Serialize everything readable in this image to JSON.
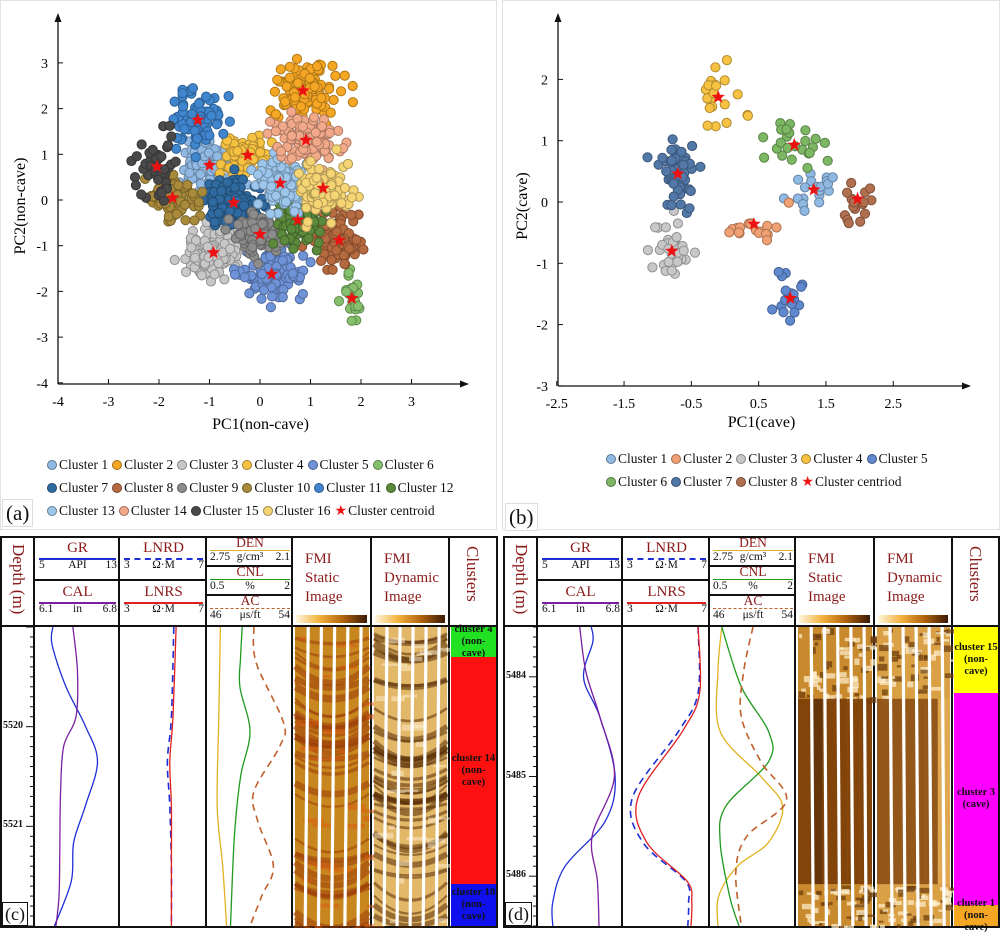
{
  "chart_data": [
    {
      "id": "a",
      "type": "scatter",
      "panel_label": "(a)",
      "xlabel": "PC1(non-cave)",
      "ylabel": "PC2(non-cave)",
      "xlim": [
        -4,
        3.8
      ],
      "ylim": [
        -4,
        3.9
      ],
      "xticks": [
        -4,
        -3,
        -2,
        -1,
        0,
        1,
        2,
        3
      ],
      "yticks": [
        -4,
        -3,
        -2,
        -1,
        0,
        1,
        2,
        3
      ],
      "grid": false,
      "legend_position": "bottom",
      "centroid_label": "Cluster centroid",
      "series": [
        {
          "name": "Cluster 1",
          "color": "#8fb8e2",
          "centroid": [
            -1.0,
            0.76
          ],
          "spread": [
            0.3,
            0.35
          ],
          "n": 110
        },
        {
          "name": "Cluster 2",
          "color": "#f5a623",
          "centroid": [
            0.85,
            2.39
          ],
          "spread": [
            0.4,
            0.42
          ],
          "n": 120
        },
        {
          "name": "Cluster 3",
          "color": "#c8c8c8",
          "centroid": [
            -0.92,
            -1.15
          ],
          "spread": [
            0.32,
            0.35
          ],
          "n": 140
        },
        {
          "name": "Cluster 4",
          "color": "#f7c242",
          "centroid": [
            -0.24,
            0.98
          ],
          "spread": [
            0.35,
            0.25
          ],
          "n": 90
        },
        {
          "name": "Cluster 5",
          "color": "#6f93d8",
          "centroid": [
            0.23,
            -1.62
          ],
          "spread": [
            0.38,
            0.35
          ],
          "n": 120
        },
        {
          "name": "Cluster 6",
          "color": "#86c06c",
          "centroid": [
            1.82,
            -2.15
          ],
          "spread": [
            0.14,
            0.38
          ],
          "n": 22
        },
        {
          "name": "Cluster 7",
          "color": "#2f6aa0",
          "centroid": [
            -0.52,
            -0.06
          ],
          "spread": [
            0.32,
            0.3
          ],
          "n": 170
        },
        {
          "name": "Cluster 8",
          "color": "#b66a3f",
          "centroid": [
            1.57,
            -0.88
          ],
          "spread": [
            0.32,
            0.38
          ],
          "n": 90
        },
        {
          "name": "Cluster 9",
          "color": "#8c8c8c",
          "centroid": [
            0.0,
            -0.75
          ],
          "spread": [
            0.3,
            0.25
          ],
          "n": 140
        },
        {
          "name": "Cluster 10",
          "color": "#a88a3a",
          "centroid": [
            -1.73,
            0.05
          ],
          "spread": [
            0.3,
            0.3
          ],
          "n": 100
        },
        {
          "name": "Cluster 11",
          "color": "#3f86cf",
          "centroid": [
            -1.23,
            1.75
          ],
          "spread": [
            0.35,
            0.4
          ],
          "n": 85
        },
        {
          "name": "Cluster 12",
          "color": "#5b8a3c",
          "centroid": [
            0.75,
            -0.44
          ],
          "spread": [
            0.26,
            0.3
          ],
          "n": 120
        },
        {
          "name": "Cluster 13",
          "color": "#9cc6ec",
          "centroid": [
            0.4,
            0.37
          ],
          "spread": [
            0.3,
            0.3
          ],
          "n": 150
        },
        {
          "name": "Cluster 14",
          "color": "#f2a98a",
          "centroid": [
            0.91,
            1.31
          ],
          "spread": [
            0.4,
            0.3
          ],
          "n": 130
        },
        {
          "name": "Cluster 15",
          "color": "#4a4a4a",
          "centroid": [
            -2.04,
            0.73
          ],
          "spread": [
            0.3,
            0.45
          ],
          "n": 55
        },
        {
          "name": "Cluster 16",
          "color": "#f5d474",
          "centroid": [
            1.25,
            0.26
          ],
          "spread": [
            0.35,
            0.35
          ],
          "n": 110
        }
      ]
    },
    {
      "id": "b",
      "type": "scatter",
      "panel_label": "(b)",
      "xlabel": "PC1(cave)",
      "ylabel": "PC2(cave)",
      "xlim": [
        -2.5,
        3.5
      ],
      "ylim": [
        -3,
        2.9
      ],
      "xticks": [
        -2.5,
        -1.5,
        -0.5,
        0.5,
        1.5,
        2.5
      ],
      "yticks": [
        -3,
        -2,
        -1,
        0,
        1,
        2
      ],
      "grid": false,
      "legend_position": "bottom",
      "centroid_label": "Cluster centriod",
      "series": [
        {
          "name": "Cluster 1",
          "color": "#8fb8e2",
          "centroid": [
            1.32,
            0.2
          ],
          "spread": [
            0.22,
            0.25
          ],
          "n": 20
        },
        {
          "name": "Cluster 2",
          "color": "#f0a072",
          "centroid": [
            0.43,
            -0.36
          ],
          "spread": [
            0.28,
            0.22
          ],
          "n": 18
        },
        {
          "name": "Cluster 3",
          "color": "#c8c8c8",
          "centroid": [
            -0.79,
            -0.8
          ],
          "spread": [
            0.18,
            0.3
          ],
          "n": 34
        },
        {
          "name": "Cluster 4",
          "color": "#f7c242",
          "centroid": [
            -0.1,
            1.71
          ],
          "spread": [
            0.25,
            0.38
          ],
          "n": 20
        },
        {
          "name": "Cluster 5",
          "color": "#5f88cf",
          "centroid": [
            0.97,
            -1.57
          ],
          "spread": [
            0.15,
            0.35
          ],
          "n": 17
        },
        {
          "name": "Cluster 6",
          "color": "#7cb763",
          "centroid": [
            1.03,
            0.93
          ],
          "spread": [
            0.25,
            0.3
          ],
          "n": 24
        },
        {
          "name": "Cluster 7",
          "color": "#5278a8",
          "centroid": [
            -0.7,
            0.46
          ],
          "spread": [
            0.2,
            0.38
          ],
          "n": 52
        },
        {
          "name": "Cluster 8",
          "color": "#b0704f",
          "centroid": [
            1.97,
            0.05
          ],
          "spread": [
            0.15,
            0.2
          ],
          "n": 18
        }
      ]
    }
  ],
  "logs": [
    {
      "id": "c",
      "panel_label": "(c)",
      "depth_title": "Depth (m)",
      "depth_range": [
        5519.0,
        5522.0
      ],
      "depth_labels": [
        "5520",
        "5521"
      ],
      "depth_label_values": [
        5520,
        5521
      ],
      "tracks": {
        "gr": {
          "name": "GR",
          "min": "5",
          "unit": "API",
          "max": "13",
          "color": "#1f2fd6"
        },
        "cal": {
          "name": "CAL",
          "min": "6.1",
          "unit": "in",
          "max": "6.8",
          "color": "#7a1fa0"
        },
        "lnrd": {
          "name": "LNRD",
          "min": "3",
          "unit": "Ω·M",
          "max": "7",
          "color": "#1f2fd6"
        },
        "lnrs": {
          "name": "LNRS",
          "min": "3",
          "unit": "Ω·M",
          "max": "7",
          "color": "#e01f1f"
        },
        "den": {
          "name": "DEN",
          "min": "2.75",
          "unit": "g/cm³",
          "max": "2.1",
          "color": "#e0b21f"
        },
        "cnl": {
          "name": "CNL",
          "min": "0.5",
          "unit": "%",
          "max": "2",
          "color": "#1f9a1f"
        },
        "ac": {
          "name": "AC",
          "min": "46",
          "unit": "μs/ft",
          "max": "54",
          "color": "#c0602a"
        }
      },
      "fmi_static_title": "FMI Static Image",
      "fmi_dynamic_title": "FMI Dynamic Image",
      "clusters_title": "Clusters",
      "curves_frac": {
        "gr": [
          [
            0,
            0.18
          ],
          [
            0.06,
            0.17
          ],
          [
            0.2,
            0.35
          ],
          [
            0.33,
            0.6
          ],
          [
            0.45,
            0.76
          ],
          [
            0.6,
            0.6
          ],
          [
            0.72,
            0.45
          ],
          [
            0.85,
            0.42
          ],
          [
            1,
            0.2
          ]
        ],
        "cal": [
          [
            0,
            0.44
          ],
          [
            0.15,
            0.5
          ],
          [
            0.3,
            0.48
          ],
          [
            0.4,
            0.32
          ],
          [
            0.55,
            0.28
          ],
          [
            0.75,
            0.27
          ],
          [
            0.9,
            0.26
          ],
          [
            1,
            0.22
          ]
        ],
        "lnrd": [
          [
            0,
            0.63
          ],
          [
            0.3,
            0.6
          ],
          [
            0.45,
            0.55
          ],
          [
            0.6,
            0.58
          ],
          [
            0.8,
            0.6
          ],
          [
            1,
            0.6
          ]
        ],
        "lnrs": [
          [
            0,
            0.66
          ],
          [
            0.3,
            0.62
          ],
          [
            0.45,
            0.58
          ],
          [
            0.6,
            0.6
          ],
          [
            0.8,
            0.6
          ],
          [
            1,
            0.6
          ]
        ],
        "den": [
          [
            0,
            0.12
          ],
          [
            0.3,
            0.1
          ],
          [
            0.6,
            0.08
          ],
          [
            0.8,
            0.15
          ],
          [
            1,
            0.2
          ]
        ],
        "cnl": [
          [
            0,
            0.4
          ],
          [
            0.1,
            0.38
          ],
          [
            0.2,
            0.37
          ],
          [
            0.35,
            0.5
          ],
          [
            0.5,
            0.38
          ],
          [
            0.7,
            0.3
          ],
          [
            1,
            0.25
          ]
        ],
        "ac": [
          [
            0,
            0.55
          ],
          [
            0.12,
            0.58
          ],
          [
            0.32,
            0.93
          ],
          [
            0.4,
            0.88
          ],
          [
            0.55,
            0.55
          ],
          [
            0.65,
            0.6
          ],
          [
            0.8,
            0.8
          ],
          [
            0.9,
            0.65
          ],
          [
            1,
            0.5
          ]
        ]
      },
      "fmi_style": "layered",
      "zones": [
        {
          "label": "cluster 4",
          "sub": "(non-cave)",
          "color": "#22e022",
          "from": 0.0,
          "to": 0.1
        },
        {
          "label": "cluster 14",
          "sub": "(non-cave)",
          "color": "#ff1010",
          "from": 0.1,
          "to": 0.86
        },
        {
          "label": "cluster 10",
          "sub": "(non-cave)",
          "color": "#1010ee",
          "from": 0.86,
          "to": 1.0
        }
      ]
    },
    {
      "id": "d",
      "panel_label": "(d)",
      "depth_title": "Depth (m)",
      "depth_range": [
        5483.5,
        5486.5
      ],
      "depth_labels": [
        "5484",
        "5485",
        "5486"
      ],
      "depth_label_values": [
        5484,
        5485,
        5486
      ],
      "tracks": {
        "gr": {
          "name": "GR",
          "min": "5",
          "unit": "API",
          "max": "13",
          "color": "#1f2fd6"
        },
        "cal": {
          "name": "CAL",
          "min": "6.1",
          "unit": "in",
          "max": "6.8",
          "color": "#7a1fa0"
        },
        "lnrd": {
          "name": "LNRD",
          "min": "3",
          "unit": "Ω·M",
          "max": "7",
          "color": "#1f2fd6"
        },
        "lnrs": {
          "name": "LNRS",
          "min": "3",
          "unit": "Ω·M",
          "max": "7",
          "color": "#e01f1f"
        },
        "den": {
          "name": "DEN",
          "min": "2.75",
          "unit": "g/cm³",
          "max": "2.1",
          "color": "#e0b21f"
        },
        "cnl": {
          "name": "CNL",
          "min": "0.5",
          "unit": "%",
          "max": "2",
          "color": "#1f9a1f"
        },
        "ac": {
          "name": "AC",
          "min": "46",
          "unit": "μs/ft",
          "max": "54",
          "color": "#c0602a"
        }
      },
      "fmi_static_title": "FMI Static Image",
      "fmi_dynamic_title": "FMI Dynamic Image",
      "clusters_title": "Clusters",
      "curves_frac": {
        "gr": [
          [
            0,
            0.64
          ],
          [
            0.05,
            0.66
          ],
          [
            0.17,
            0.54
          ],
          [
            0.3,
            0.75
          ],
          [
            0.5,
            0.95
          ],
          [
            0.65,
            0.82
          ],
          [
            0.8,
            0.3
          ],
          [
            0.92,
            0.14
          ],
          [
            1,
            0.14
          ]
        ],
        "cal": [
          [
            0,
            0.49
          ],
          [
            0.15,
            0.57
          ],
          [
            0.3,
            0.75
          ],
          [
            0.5,
            0.94
          ],
          [
            0.7,
            0.65
          ],
          [
            0.85,
            0.72
          ],
          [
            1,
            0.74
          ]
        ],
        "lnrd": [
          [
            0,
            0.9
          ],
          [
            0.22,
            0.9
          ],
          [
            0.35,
            0.65
          ],
          [
            0.57,
            0.07
          ],
          [
            0.72,
            0.2
          ],
          [
            0.85,
            0.74
          ],
          [
            0.92,
            0.78
          ],
          [
            1,
            0.77
          ]
        ],
        "lnrs": [
          [
            0,
            0.9
          ],
          [
            0.22,
            0.92
          ],
          [
            0.35,
            0.7
          ],
          [
            0.57,
            0.14
          ],
          [
            0.72,
            0.25
          ],
          [
            0.85,
            0.76
          ],
          [
            0.92,
            0.82
          ],
          [
            1,
            0.81
          ]
        ],
        "den": [
          [
            0,
            0.1
          ],
          [
            0.15,
            0.05
          ],
          [
            0.35,
            0.08
          ],
          [
            0.5,
            0.6
          ],
          [
            0.6,
            0.88
          ],
          [
            0.72,
            0.7
          ],
          [
            0.8,
            0.3
          ],
          [
            0.9,
            0.06
          ],
          [
            1,
            0.05
          ]
        ],
        "cnl": [
          [
            0,
            0.1
          ],
          [
            0.2,
            0.35
          ],
          [
            0.35,
            0.7
          ],
          [
            0.45,
            0.7
          ],
          [
            0.6,
            0.15
          ],
          [
            0.72,
            0.08
          ],
          [
            0.9,
            0.2
          ],
          [
            1,
            0.32
          ]
        ],
        "ac": [
          [
            0,
            0.5
          ],
          [
            0.15,
            0.38
          ],
          [
            0.3,
            0.35
          ],
          [
            0.45,
            0.6
          ],
          [
            0.58,
            0.93
          ],
          [
            0.7,
            0.42
          ],
          [
            0.82,
            0.28
          ],
          [
            1,
            0.35
          ]
        ]
      },
      "fmi_style": "cave",
      "zones": [
        {
          "label": "cluster 15",
          "sub": "(non-cave)",
          "color": "#ffff00",
          "from": 0.0,
          "to": 0.22
        },
        {
          "label": "cluster 3",
          "sub": "(cave)",
          "color": "#ff00ff",
          "from": 0.22,
          "to": 0.93
        },
        {
          "label": "cluster 1",
          "sub": "(non-cave)",
          "color": "#f5a623",
          "from": 0.93,
          "to": 1.0
        }
      ]
    }
  ]
}
